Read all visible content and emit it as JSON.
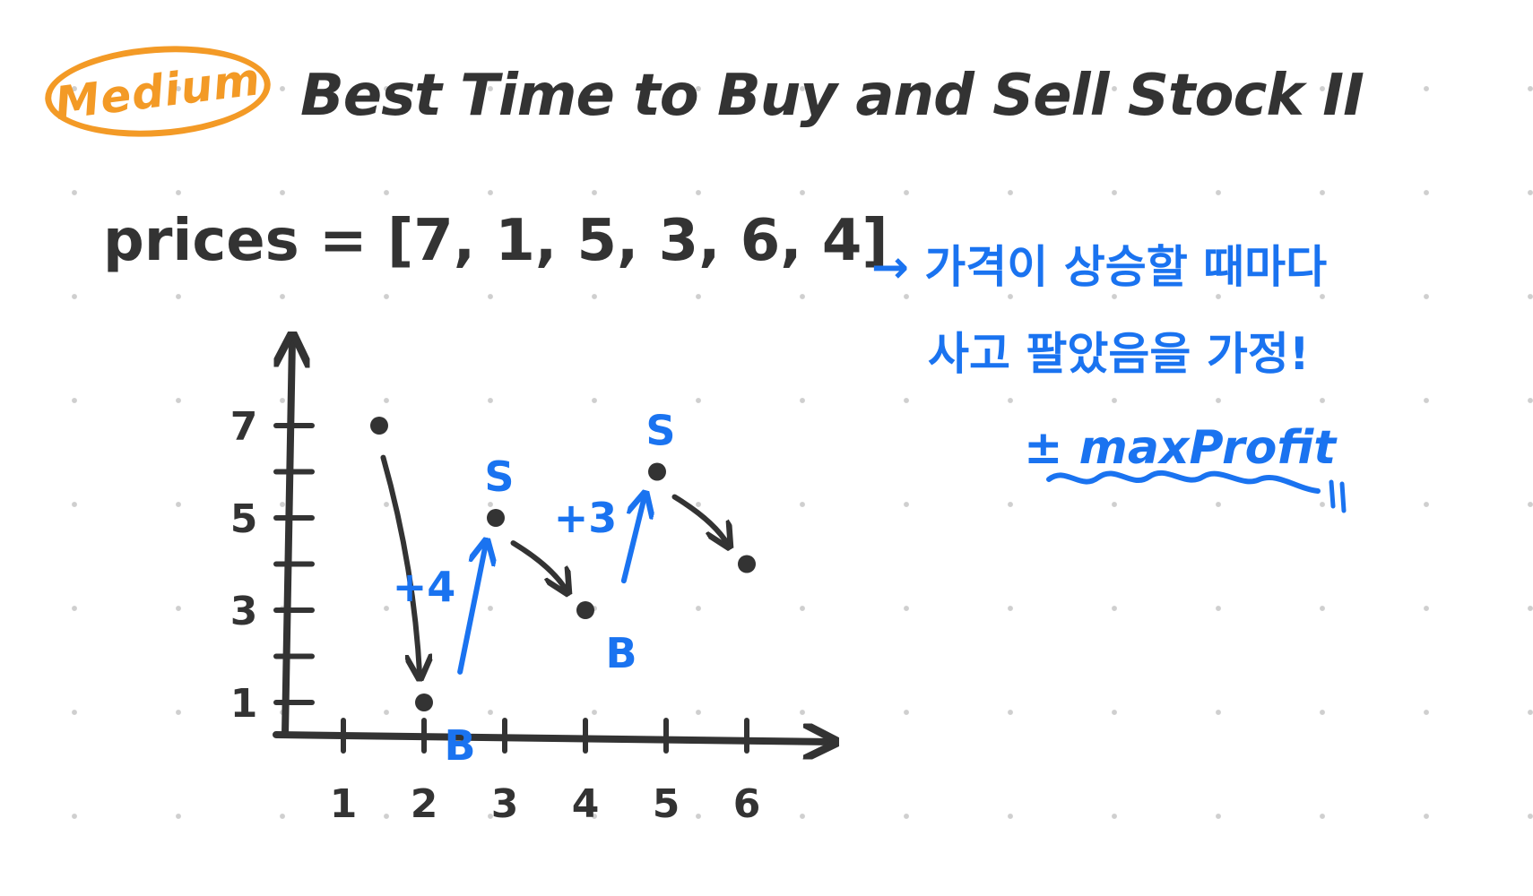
{
  "header": {
    "difficulty": "Medium",
    "title": "Best Time to Buy and Sell Stock II"
  },
  "prices_line": "prices = [7, 1, 5, 3, 6, 4]",
  "notes": {
    "line1": "→ 가격이 상승할 때마다",
    "line2": "사고 팔았음을 가정!",
    "line3": "± maxProfit"
  },
  "chart_data": {
    "type": "line",
    "x": [
      1,
      2,
      3,
      4,
      5,
      6
    ],
    "values": [
      7,
      1,
      5,
      3,
      6,
      4
    ],
    "x_ticks": [
      "1",
      "2",
      "3",
      "4",
      "5",
      "6"
    ],
    "y_ticks": [
      "1",
      "3",
      "5",
      "7"
    ],
    "transactions": [
      {
        "from_x": 2,
        "to_x": 3,
        "buy_label": "B",
        "sell_label": "S",
        "gain_label": "+4"
      },
      {
        "from_x": 4,
        "to_x": 5,
        "buy_label": "B",
        "sell_label": "S",
        "gain_label": "+3"
      }
    ]
  },
  "colors": {
    "ink": "#333333",
    "accent_blue": "#1a73f0",
    "accent_orange": "#f39a26"
  }
}
